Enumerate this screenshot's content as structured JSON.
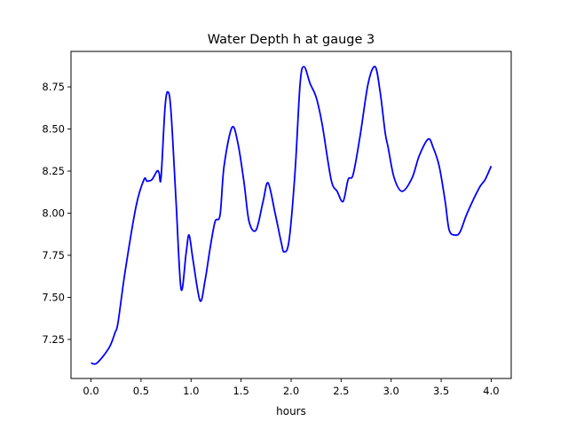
{
  "chart_data": {
    "type": "line",
    "title": "Water Depth h at gauge 3",
    "xlabel": "hours",
    "ylabel": "",
    "xlim": [
      -0.2,
      4.2
    ],
    "ylim": [
      7.018,
      8.961
    ],
    "grid": false,
    "xticks": [
      0.0,
      0.5,
      1.0,
      1.5,
      2.0,
      2.5,
      3.0,
      3.5,
      4.0
    ],
    "xtick_labels": [
      "0.0",
      "0.5",
      "1.0",
      "1.5",
      "2.0",
      "2.5",
      "3.0",
      "3.5",
      "4.0"
    ],
    "yticks": [
      7.25,
      7.5,
      7.75,
      8.0,
      8.25,
      8.5,
      8.75
    ],
    "ytick_labels": [
      "7.25",
      "7.50",
      "7.75",
      "8.00",
      "8.25",
      "8.50",
      "8.75"
    ],
    "series": [
      {
        "name": "h",
        "color": "#0000ff",
        "x": [
          0.0,
          0.06,
          0.18,
          0.24,
          0.27,
          0.34,
          0.45,
          0.53,
          0.56,
          0.61,
          0.66,
          0.68,
          0.7,
          0.74,
          0.77,
          0.8,
          0.85,
          0.9,
          0.95,
          0.98,
          1.02,
          1.09,
          1.14,
          1.19,
          1.24,
          1.29,
          1.33,
          1.41,
          1.47,
          1.53,
          1.58,
          1.65,
          1.72,
          1.77,
          1.84,
          1.9,
          1.93,
          1.98,
          2.04,
          2.09,
          2.13,
          2.19,
          2.25,
          2.31,
          2.4,
          2.46,
          2.52,
          2.57,
          2.62,
          2.69,
          2.77,
          2.84,
          2.89,
          2.94,
          2.97,
          3.03,
          3.11,
          3.21,
          3.28,
          3.37,
          3.42,
          3.48,
          3.54,
          3.58,
          3.64,
          3.69,
          3.76,
          3.88,
          3.94,
          4.0
        ],
        "y": [
          7.11,
          7.11,
          7.2,
          7.29,
          7.35,
          7.65,
          8.04,
          8.2,
          8.19,
          8.2,
          8.25,
          8.24,
          8.21,
          8.63,
          8.72,
          8.6,
          8.07,
          7.55,
          7.76,
          7.87,
          7.72,
          7.48,
          7.6,
          7.79,
          7.95,
          7.99,
          8.28,
          8.51,
          8.41,
          8.18,
          7.95,
          7.9,
          8.07,
          8.18,
          8.0,
          7.83,
          7.77,
          7.84,
          8.25,
          8.77,
          8.87,
          8.77,
          8.69,
          8.53,
          8.2,
          8.13,
          8.07,
          8.2,
          8.23,
          8.46,
          8.77,
          8.87,
          8.72,
          8.48,
          8.39,
          8.21,
          8.13,
          8.21,
          8.34,
          8.44,
          8.39,
          8.28,
          8.07,
          7.9,
          7.87,
          7.89,
          8.0,
          8.15,
          8.2,
          8.28
        ]
      }
    ]
  }
}
